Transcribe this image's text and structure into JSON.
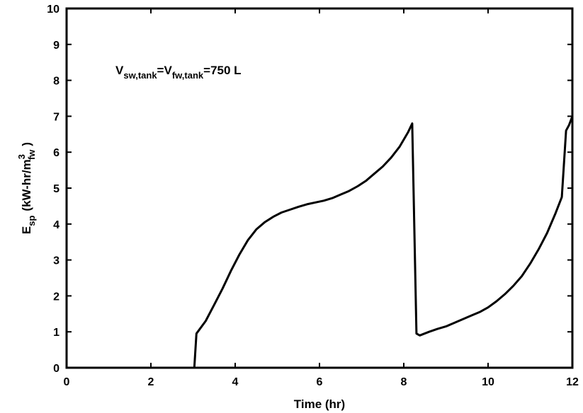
{
  "chart_data": {
    "type": "line",
    "xlabel": "Time (hr)",
    "ylabel": {
      "main": "E",
      "main_sub": "sp",
      "unit_open": "(kW-hr/m",
      "unit_sup": "3",
      "unit_sub": "fw",
      "unit_close": ")"
    },
    "annotation": {
      "v1": "V",
      "v1_sub": "sw,tank",
      "eq1": "=V",
      "v2_sub": "fw,tank",
      "eq2": "=750 L"
    },
    "xlim": [
      0,
      12
    ],
    "ylim": [
      0,
      10
    ],
    "xticks": [
      0,
      2,
      4,
      6,
      8,
      10,
      12
    ],
    "yticks": [
      0,
      1,
      2,
      3,
      4,
      5,
      6,
      7,
      8,
      9,
      10
    ],
    "grid": false,
    "line_color": "#000000",
    "series": [
      {
        "x": [
          3.03,
          3.08,
          3.3,
          3.5,
          3.7,
          3.9,
          4.1,
          4.3,
          4.5,
          4.7,
          4.9,
          5.1,
          5.3,
          5.5,
          5.7,
          5.9,
          6.1,
          6.3,
          6.5,
          6.7,
          6.9,
          7.1,
          7.3,
          7.5,
          7.7,
          7.9,
          8.1,
          8.2,
          8.3,
          8.38,
          8.6,
          8.8,
          9.0,
          9.2,
          9.4,
          9.6,
          9.8,
          10.0,
          10.2,
          10.4,
          10.6,
          10.8,
          11.0,
          11.2,
          11.4,
          11.6,
          11.75,
          11.85,
          11.92,
          12.0
        ],
        "y": [
          0.0,
          0.95,
          1.3,
          1.75,
          2.2,
          2.7,
          3.15,
          3.55,
          3.85,
          4.05,
          4.2,
          4.32,
          4.4,
          4.48,
          4.55,
          4.6,
          4.65,
          4.72,
          4.82,
          4.92,
          5.05,
          5.2,
          5.4,
          5.6,
          5.85,
          6.15,
          6.55,
          6.8,
          0.95,
          0.9,
          1.0,
          1.08,
          1.15,
          1.25,
          1.35,
          1.45,
          1.55,
          1.68,
          1.85,
          2.05,
          2.28,
          2.55,
          2.9,
          3.3,
          3.75,
          4.3,
          4.75,
          6.6,
          6.75,
          7.0
        ]
      }
    ]
  }
}
